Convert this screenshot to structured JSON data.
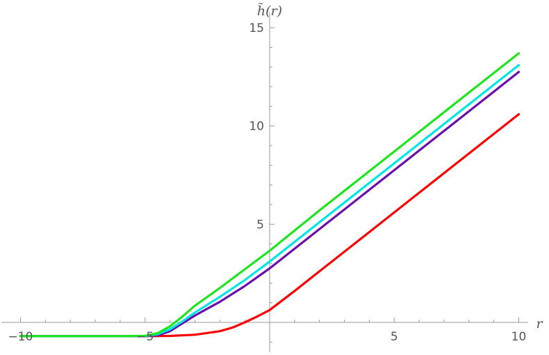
{
  "chart_data": {
    "type": "line",
    "title": "",
    "xlabel": "r",
    "ylabel": "h̃(r)",
    "xlim": [
      -10.5,
      10.2
    ],
    "ylim": [
      -1.5,
      15.5
    ],
    "x_ticks": [
      -10,
      -5,
      5,
      10
    ],
    "x_tick_labels": [
      "−10",
      "−5",
      "5",
      "10"
    ],
    "y_ticks": [
      5,
      10,
      15
    ],
    "y_tick_labels": [
      "5",
      "10",
      "15"
    ],
    "grid": false,
    "legend": "none",
    "series": [
      {
        "color": "#ff0000",
        "x": [
          -10,
          -6,
          -5,
          -4,
          -3,
          -2,
          -1.5,
          -1,
          -0.5,
          0,
          1,
          2,
          4,
          6,
          8,
          10
        ],
        "y": [
          -0.7,
          -0.7,
          -0.7,
          -0.69,
          -0.63,
          -0.45,
          -0.27,
          0.0,
          0.3,
          0.63,
          1.6,
          2.6,
          4.6,
          6.6,
          8.6,
          10.6
        ]
      },
      {
        "color": "#6a0dad",
        "x": [
          -10,
          -6,
          -5,
          -4.5,
          -4,
          -3.5,
          -3,
          -2,
          -1,
          0,
          2,
          4,
          6,
          8,
          10
        ],
        "y": [
          -0.7,
          -0.7,
          -0.7,
          -0.66,
          -0.45,
          -0.05,
          0.35,
          1.05,
          1.85,
          2.75,
          4.75,
          6.75,
          8.75,
          10.75,
          12.75
        ]
      },
      {
        "color": "#00e5e5",
        "x": [
          -10,
          -6,
          -5,
          -4.5,
          -4,
          -3.5,
          -3,
          -2,
          -1,
          0,
          2,
          4,
          6,
          8,
          10
        ],
        "y": [
          -0.7,
          -0.7,
          -0.69,
          -0.6,
          -0.35,
          0.05,
          0.5,
          1.3,
          2.15,
          3.1,
          5.1,
          7.1,
          9.1,
          11.1,
          13.1
        ]
      },
      {
        "color": "#1ee61e",
        "x": [
          -10,
          -6,
          -5,
          -4.5,
          -4,
          -3.5,
          -3,
          -2,
          -1,
          0,
          2,
          4,
          6,
          8,
          10
        ],
        "y": [
          -0.7,
          -0.7,
          -0.68,
          -0.55,
          -0.2,
          0.3,
          0.85,
          1.75,
          2.7,
          3.65,
          5.7,
          7.7,
          9.7,
          11.7,
          13.7
        ]
      }
    ]
  }
}
